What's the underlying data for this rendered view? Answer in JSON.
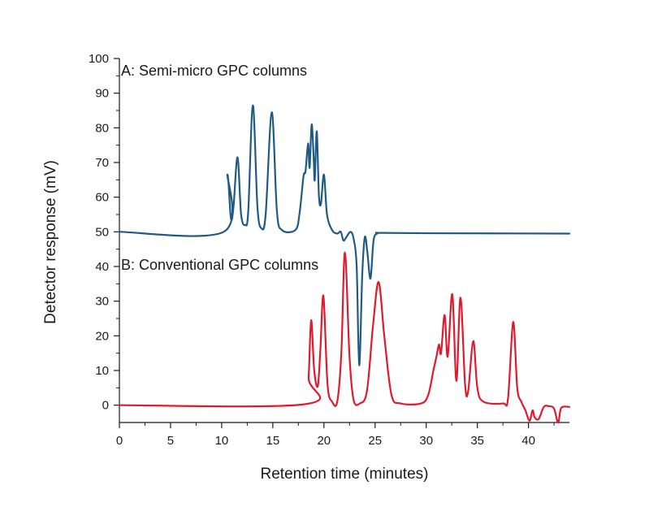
{
  "chart_data": {
    "type": "line",
    "title": "",
    "xlabel": "Retention time (minutes)",
    "ylabel": "Detector response (mV)",
    "xlim": [
      0,
      44
    ],
    "ylim": [
      -5,
      100
    ],
    "x_ticks": [
      0,
      5,
      10,
      15,
      20,
      25,
      30,
      35,
      40
    ],
    "y_ticks": [
      0,
      10,
      20,
      30,
      40,
      50,
      60,
      70,
      80,
      90,
      100
    ],
    "grid": false,
    "annotations": [
      {
        "text": "A: Semi-micro GPC columns"
      },
      {
        "text": "B: Conventional GPC columns"
      }
    ],
    "series": [
      {
        "label": "A: Semi-micro GPC columns",
        "color": "#1f5a85",
        "baseline": 50,
        "points": [
          [
            0,
            50
          ],
          [
            10.2,
            50
          ],
          [
            10.55,
            66.5
          ],
          [
            10.9,
            54
          ],
          [
            11.15,
            57
          ],
          [
            11.55,
            71.5
          ],
          [
            11.9,
            55
          ],
          [
            12.3,
            52
          ],
          [
            12.6,
            56
          ],
          [
            13.05,
            86.5
          ],
          [
            13.5,
            57
          ],
          [
            13.9,
            51
          ],
          [
            14.3,
            55
          ],
          [
            14.9,
            84.5
          ],
          [
            15.4,
            56
          ],
          [
            15.9,
            50.5
          ],
          [
            17.2,
            50.5
          ],
          [
            17.6,
            55
          ],
          [
            18.0,
            66
          ],
          [
            18.2,
            67.5
          ],
          [
            18.45,
            75.5
          ],
          [
            18.6,
            68.5
          ],
          [
            18.8,
            81
          ],
          [
            19.0,
            71
          ],
          [
            19.1,
            65
          ],
          [
            19.3,
            79
          ],
          [
            19.5,
            61
          ],
          [
            19.7,
            58
          ],
          [
            20.0,
            66.5
          ],
          [
            20.3,
            55
          ],
          [
            20.8,
            50.5
          ],
          [
            21.3,
            49.5
          ],
          [
            21.65,
            50
          ],
          [
            21.9,
            47.5
          ],
          [
            22.2,
            48.5
          ],
          [
            22.6,
            50
          ],
          [
            22.9,
            48
          ],
          [
            23.2,
            40
          ],
          [
            23.45,
            11.5
          ],
          [
            23.75,
            38
          ],
          [
            24.0,
            48.5
          ],
          [
            24.25,
            44
          ],
          [
            24.55,
            36.5
          ],
          [
            24.85,
            47.5
          ],
          [
            25.2,
            49.5
          ],
          [
            25.5,
            49.7
          ],
          [
            30,
            49.6
          ],
          [
            44,
            49.5
          ]
        ]
      },
      {
        "label": "B: Conventional GPC columns",
        "color": "#e01a2e",
        "baseline": 0,
        "points": [
          [
            0,
            0
          ],
          [
            18.2,
            0.3
          ],
          [
            18.5,
            8
          ],
          [
            18.75,
            24.5
          ],
          [
            19.05,
            10
          ],
          [
            19.4,
            5.5
          ],
          [
            19.65,
            16
          ],
          [
            19.95,
            31.5
          ],
          [
            20.35,
            6
          ],
          [
            20.8,
            1
          ],
          [
            21.3,
            1
          ],
          [
            21.7,
            15
          ],
          [
            22.05,
            44
          ],
          [
            22.5,
            14
          ],
          [
            22.9,
            1.5
          ],
          [
            23.5,
            0.5
          ],
          [
            24.2,
            4
          ],
          [
            24.8,
            23
          ],
          [
            25.35,
            35.5
          ],
          [
            25.9,
            20
          ],
          [
            26.6,
            3
          ],
          [
            27.5,
            0.5
          ],
          [
            29.5,
            0.5
          ],
          [
            30.2,
            3
          ],
          [
            30.7,
            10
          ],
          [
            31.0,
            14
          ],
          [
            31.25,
            17.5
          ],
          [
            31.45,
            15
          ],
          [
            31.8,
            26
          ],
          [
            32.1,
            14
          ],
          [
            32.55,
            32
          ],
          [
            32.95,
            7
          ],
          [
            33.35,
            31
          ],
          [
            33.8,
            6
          ],
          [
            34.1,
            4
          ],
          [
            34.6,
            18.5
          ],
          [
            35.0,
            5
          ],
          [
            35.6,
            1
          ],
          [
            37.5,
            0.5
          ],
          [
            38.0,
            2
          ],
          [
            38.5,
            24
          ],
          [
            38.9,
            5
          ],
          [
            39.3,
            1
          ],
          [
            39.7,
            -1.5
          ],
          [
            40.1,
            -4.5
          ],
          [
            40.4,
            -1.5
          ],
          [
            40.6,
            -3.5
          ],
          [
            41.0,
            -4
          ],
          [
            41.5,
            -0.5
          ],
          [
            42.0,
            -0.3
          ],
          [
            42.5,
            -1
          ],
          [
            42.9,
            -5
          ],
          [
            43.2,
            -0.8
          ],
          [
            44,
            -0.5
          ]
        ]
      }
    ]
  }
}
